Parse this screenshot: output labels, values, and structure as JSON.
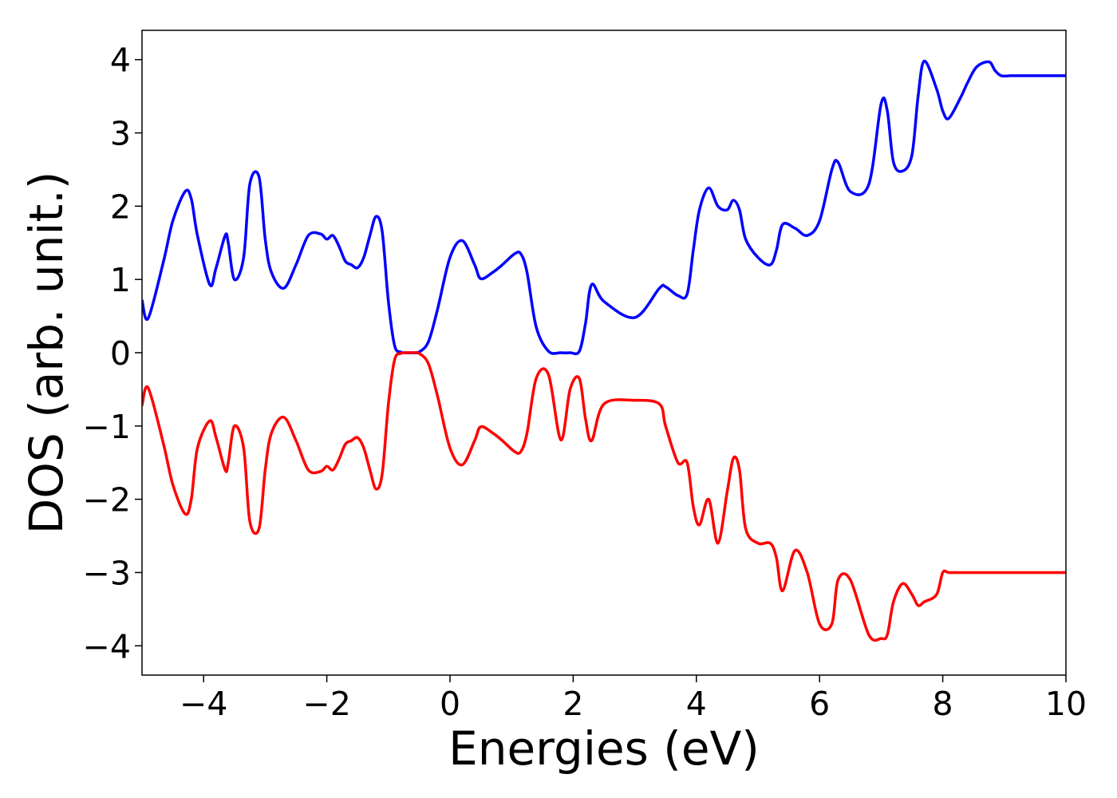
{
  "chart_data": {
    "type": "line",
    "title": "",
    "xlabel": "Energies (eV)",
    "ylabel": "DOS (arb. unit.)",
    "xlim": [
      -5,
      10
    ],
    "ylim": [
      -4.4,
      4.4
    ],
    "grid": false,
    "legend": "none",
    "x_ticks": [
      -4,
      -2,
      0,
      2,
      4,
      6,
      8,
      10
    ],
    "x_tick_labels": [
      "−4",
      "−2",
      "0",
      "2",
      "4",
      "6",
      "8",
      "10"
    ],
    "y_ticks": [
      -4,
      -3,
      -2,
      -1,
      0,
      1,
      2,
      3,
      4
    ],
    "y_tick_labels": [
      "−4",
      "−3",
      "−2",
      "−1",
      "0",
      "1",
      "2",
      "3",
      "4"
    ],
    "series": [
      {
        "color": "#0000ff",
        "x": [
          -5.0,
          -4.9,
          -4.65,
          -4.5,
          -4.3,
          -4.2,
          -4.1,
          -3.9,
          -3.8,
          -3.65,
          -3.6,
          -3.5,
          -3.35,
          -3.25,
          -3.1,
          -3.0,
          -2.9,
          -2.7,
          -2.5,
          -2.3,
          -2.1,
          -2.0,
          -1.9,
          -1.8,
          -1.7,
          -1.6,
          -1.5,
          -1.4,
          -1.3,
          -1.2,
          -1.1,
          -1.0,
          -0.9,
          -0.8,
          -0.7,
          -0.6,
          -0.5,
          -0.35,
          -0.2,
          0.0,
          0.2,
          0.4,
          0.5,
          0.7,
          0.85,
          1.05,
          1.15,
          1.25,
          1.4,
          1.6,
          1.8,
          1.95,
          2.1,
          2.2,
          2.3,
          2.5,
          3.0,
          3.4,
          3.5,
          3.7,
          3.85,
          3.95,
          4.05,
          4.2,
          4.35,
          4.5,
          4.6,
          4.7,
          4.8,
          5.0,
          5.2,
          5.3,
          5.4,
          5.6,
          5.8,
          6.0,
          6.2,
          6.3,
          6.5,
          6.8,
          7.0,
          7.1,
          7.2,
          7.35,
          7.5,
          7.6,
          7.7,
          7.9,
          8.0,
          8.1,
          8.3,
          8.4,
          8.55,
          8.75,
          8.85,
          8.95,
          9.1,
          9.2,
          9.3,
          9.5,
          9.65,
          9.8,
          9.9,
          10.0
        ],
        "values": [
          0.72,
          0.47,
          1.25,
          1.8,
          2.2,
          2.1,
          1.6,
          0.93,
          1.15,
          1.6,
          1.5,
          1.0,
          1.3,
          2.3,
          2.4,
          1.55,
          1.1,
          0.88,
          1.2,
          1.6,
          1.62,
          1.55,
          1.6,
          1.45,
          1.25,
          1.2,
          1.16,
          1.3,
          1.6,
          1.86,
          1.65,
          0.7,
          0.1,
          0.01,
          0.0,
          0.0,
          0.01,
          0.15,
          0.6,
          1.3,
          1.53,
          1.2,
          1.01,
          1.1,
          1.2,
          1.35,
          1.35,
          1.1,
          0.35,
          0.02,
          0.0,
          0.0,
          0.02,
          0.4,
          0.93,
          0.7,
          0.48,
          0.88,
          0.9,
          0.78,
          0.8,
          1.4,
          1.95,
          2.25,
          2.0,
          1.95,
          2.08,
          1.95,
          1.55,
          1.3,
          1.2,
          1.4,
          1.75,
          1.7,
          1.6,
          1.8,
          2.5,
          2.6,
          2.2,
          2.3,
          3.4,
          3.3,
          2.6,
          2.48,
          2.7,
          3.5,
          3.98,
          3.6,
          3.3,
          3.2,
          3.5,
          3.68,
          3.9,
          3.97,
          3.85,
          3.78,
          3.78,
          3.78,
          3.78,
          3.78,
          3.78,
          3.78,
          3.78,
          3.78
        ]
      },
      {
        "color": "#ff0000",
        "x": [
          -5.0,
          -4.9,
          -4.65,
          -4.5,
          -4.3,
          -4.2,
          -4.1,
          -3.9,
          -3.8,
          -3.65,
          -3.6,
          -3.5,
          -3.35,
          -3.25,
          -3.1,
          -3.0,
          -2.9,
          -2.7,
          -2.5,
          -2.3,
          -2.1,
          -2.0,
          -1.9,
          -1.8,
          -1.7,
          -1.6,
          -1.5,
          -1.4,
          -1.3,
          -1.2,
          -1.1,
          -1.0,
          -0.9,
          -0.8,
          -0.7,
          -0.6,
          -0.5,
          -0.35,
          -0.2,
          0.0,
          0.2,
          0.4,
          0.5,
          0.7,
          0.85,
          1.05,
          1.15,
          1.25,
          1.4,
          1.6,
          1.8,
          1.95,
          2.1,
          2.2,
          2.3,
          2.5,
          3.0,
          3.4,
          3.5,
          3.7,
          3.85,
          3.95,
          4.05,
          4.2,
          4.35,
          4.5,
          4.6,
          4.7,
          4.8,
          5.0,
          5.2,
          5.3,
          5.4,
          5.6,
          5.8,
          6.0,
          6.2,
          6.3,
          6.5,
          6.8,
          7.0,
          7.1,
          7.2,
          7.35,
          7.5,
          7.6,
          7.7,
          7.9,
          8.0,
          8.1,
          8.3,
          8.4,
          8.55,
          8.75,
          8.85,
          8.95,
          9.1,
          9.2,
          9.3,
          9.5,
          9.65,
          9.8,
          9.9,
          10.0
        ],
        "values": [
          -0.72,
          -0.48,
          -1.25,
          -1.8,
          -2.2,
          -2.0,
          -1.3,
          -0.93,
          -1.15,
          -1.6,
          -1.5,
          -1.0,
          -1.3,
          -2.3,
          -2.4,
          -1.6,
          -1.1,
          -0.88,
          -1.2,
          -1.6,
          -1.62,
          -1.55,
          -1.6,
          -1.45,
          -1.25,
          -1.2,
          -1.16,
          -1.3,
          -1.6,
          -1.86,
          -1.65,
          -0.7,
          -0.1,
          -0.01,
          0.0,
          0.0,
          -0.01,
          -0.15,
          -0.6,
          -1.3,
          -1.53,
          -1.2,
          -1.01,
          -1.1,
          -1.2,
          -1.35,
          -1.35,
          -1.1,
          -0.35,
          -0.3,
          -1.19,
          -0.5,
          -0.35,
          -0.9,
          -1.2,
          -0.7,
          -0.65,
          -0.7,
          -1.0,
          -1.5,
          -1.5,
          -2.1,
          -2.35,
          -2.0,
          -2.6,
          -1.9,
          -1.44,
          -1.6,
          -2.4,
          -2.6,
          -2.6,
          -2.8,
          -3.25,
          -2.7,
          -3.0,
          -3.7,
          -3.7,
          -3.1,
          -3.1,
          -3.85,
          -3.9,
          -3.85,
          -3.4,
          -3.15,
          -3.3,
          -3.45,
          -3.4,
          -3.3,
          -3.0,
          -3.0,
          -3.0,
          -3.0,
          -3.0,
          -3.0,
          -3.0,
          -3.0,
          -3.0,
          -3.0,
          -3.0,
          -3.0,
          -3.0,
          -3.0,
          -3.0,
          -3.0
        ]
      }
    ]
  }
}
